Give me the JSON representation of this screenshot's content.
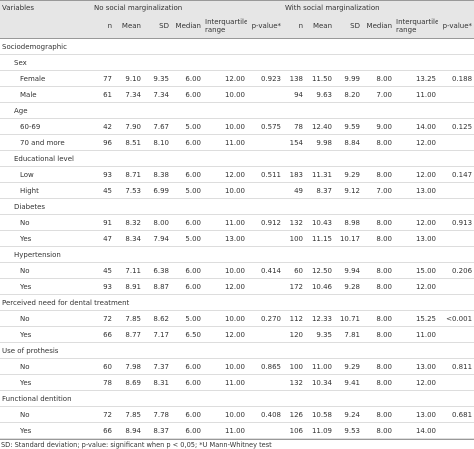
{
  "header": {
    "variables": "Variables",
    "groups": [
      "No social marginalization",
      "With social marginalization"
    ],
    "columns": [
      "n",
      "Mean",
      "SD",
      "Median",
      "Interquartile range",
      "p-value*"
    ]
  },
  "rows": [
    {
      "label": "Sociodemographic",
      "kind": "section"
    },
    {
      "label": "Sex",
      "kind": "group"
    },
    {
      "label": "Female",
      "kind": "item",
      "no": {
        "n": "77",
        "mean": "9.10",
        "sd": "9.35",
        "median": "6.00",
        "iqr": "12.00",
        "p": "0.923"
      },
      "with": {
        "n": "138",
        "mean": "11.50",
        "sd": "9.99",
        "median": "8.00",
        "iqr": "13.25",
        "p": "0.188"
      }
    },
    {
      "label": "Male",
      "kind": "item",
      "no": {
        "n": "61",
        "mean": "7.34",
        "sd": "7.34",
        "median": "6.00",
        "iqr": "10.00"
      },
      "with": {
        "n": "94",
        "mean": "9.63",
        "sd": "8.20",
        "median": "7.00",
        "iqr": "11.00"
      }
    },
    {
      "label": "Age",
      "kind": "group"
    },
    {
      "label": "60-69",
      "kind": "item",
      "no": {
        "n": "42",
        "mean": "7.90",
        "sd": "7.67",
        "median": "5.00",
        "iqr": "10.00",
        "p": "0.575"
      },
      "with": {
        "n": "78",
        "mean": "12.40",
        "sd": "9.59",
        "median": "9.00",
        "iqr": "14.00",
        "p": "0.125"
      }
    },
    {
      "label": "70 and more",
      "kind": "item",
      "no": {
        "n": "96",
        "mean": "8.51",
        "sd": "8.10",
        "median": "6.00",
        "iqr": "11.00"
      },
      "with": {
        "n": "154",
        "mean": "9.98",
        "sd": "8.84",
        "median": "8.00",
        "iqr": "12.00"
      }
    },
    {
      "label": "Educational level",
      "kind": "group"
    },
    {
      "label": "Low",
      "kind": "item",
      "no": {
        "n": "93",
        "mean": "8.71",
        "sd": "8.38",
        "median": "6.00",
        "iqr": "12.00",
        "p": "0.511"
      },
      "with": {
        "n": "183",
        "mean": "11.31",
        "sd": "9.29",
        "median": "8.00",
        "iqr": "12.00",
        "p": "0.147"
      }
    },
    {
      "label": "Hight",
      "kind": "item",
      "no": {
        "n": "45",
        "mean": "7.53",
        "sd": "6.99",
        "median": "5.00",
        "iqr": "10.00"
      },
      "with": {
        "n": "49",
        "mean": "8.37",
        "sd": "9.12",
        "median": "7.00",
        "iqr": "13.00"
      }
    },
    {
      "label": "Diabetes",
      "kind": "group"
    },
    {
      "label": "No",
      "kind": "item",
      "no": {
        "n": "91",
        "mean": "8.32",
        "sd": "8.00",
        "median": "6.00",
        "iqr": "11.00",
        "p": "0.912"
      },
      "with": {
        "n": "132",
        "mean": "10.43",
        "sd": "8.98",
        "median": "8.00",
        "iqr": "12.00",
        "p": "0.913"
      }
    },
    {
      "label": "Yes",
      "kind": "item",
      "no": {
        "n": "47",
        "mean": "8.34",
        "sd": "7.94",
        "median": "5.00",
        "iqr": "13.00"
      },
      "with": {
        "n": "100",
        "mean": "11.15",
        "sd": "10.17",
        "median": "8.00",
        "iqr": "13.00"
      }
    },
    {
      "label": "Hypertension",
      "kind": "group"
    },
    {
      "label": "No",
      "kind": "item",
      "no": {
        "n": "45",
        "mean": "7.11",
        "sd": "6.38",
        "median": "6.00",
        "iqr": "10.00",
        "p": "0.414"
      },
      "with": {
        "n": "60",
        "mean": "12.50",
        "sd": "9.94",
        "median": "8.00",
        "iqr": "15.00",
        "p": "0.206"
      }
    },
    {
      "label": "Yes",
      "kind": "item",
      "no": {
        "n": "93",
        "mean": "8.91",
        "sd": "8.87",
        "median": "6.00",
        "iqr": "12.00"
      },
      "with": {
        "n": "172",
        "mean": "10.46",
        "sd": "9.28",
        "median": "8.00",
        "iqr": "12.00"
      }
    },
    {
      "label": "Perceived need for dental treatment",
      "kind": "section"
    },
    {
      "label": "No",
      "kind": "item",
      "no": {
        "n": "72",
        "mean": "7.85",
        "sd": "8.62",
        "median": "5.00",
        "iqr": "10.00",
        "p": "0.270"
      },
      "with": {
        "n": "112",
        "mean": "12.33",
        "sd": "10.71",
        "median": "8.00",
        "iqr": "15.25",
        "p": "<0.001"
      }
    },
    {
      "label": "Yes",
      "kind": "item",
      "no": {
        "n": "66",
        "mean": "8.77",
        "sd": "7.17",
        "median": "6.50",
        "iqr": "12.00"
      },
      "with": {
        "n": "120",
        "mean": "9.35",
        "sd": "7.81",
        "median": "8.00",
        "iqr": "11.00"
      }
    },
    {
      "label": "Use of prothesis",
      "kind": "section"
    },
    {
      "label": "No",
      "kind": "item",
      "no": {
        "n": "60",
        "mean": "7.98",
        "sd": "7.37",
        "median": "6.00",
        "iqr": "10.00",
        "p": "0.865"
      },
      "with": {
        "n": "100",
        "mean": "11.00",
        "sd": "9.29",
        "median": "8.00",
        "iqr": "13.00",
        "p": "0.811"
      }
    },
    {
      "label": "Yes",
      "kind": "item",
      "no": {
        "n": "78",
        "mean": "8.69",
        "sd": "8.31",
        "median": "6.00",
        "iqr": "11.00"
      },
      "with": {
        "n": "132",
        "mean": "10.34",
        "sd": "9.41",
        "median": "8.00",
        "iqr": "12.00"
      }
    },
    {
      "label": "Functional dentition",
      "kind": "section"
    },
    {
      "label": "No",
      "kind": "item",
      "no": {
        "n": "72",
        "mean": "7.85",
        "sd": "7.78",
        "median": "6.00",
        "iqr": "10.00",
        "p": "0.408"
      },
      "with": {
        "n": "126",
        "mean": "10.58",
        "sd": "9.24",
        "median": "8.00",
        "iqr": "13.00",
        "p": "0.681"
      }
    },
    {
      "label": "Yes",
      "kind": "item",
      "no": {
        "n": "66",
        "mean": "8.94",
        "sd": "8.37",
        "median": "6.00",
        "iqr": "11.00"
      },
      "with": {
        "n": "106",
        "mean": "11.09",
        "sd": "9.53",
        "median": "8.00",
        "iqr": "14.00"
      }
    }
  ],
  "footnote": "SD: Standard deviation; p-value: significant when p < 0,05; *U Mann-Whitney test"
}
